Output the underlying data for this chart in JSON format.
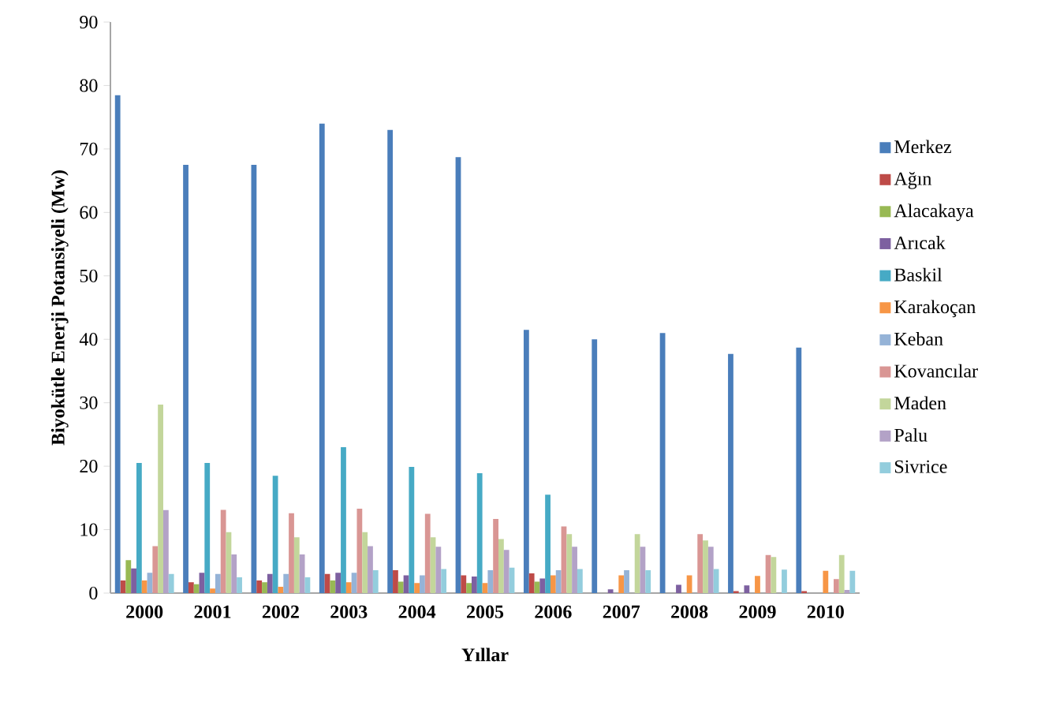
{
  "chart_data": {
    "type": "bar",
    "xlabel": "Yıllar",
    "ylabel": "Biyokütle Enerji Potansiyeli (Mw)",
    "categories": [
      "2000",
      "2001",
      "2002",
      "2003",
      "2004",
      "2005",
      "2006",
      "2007",
      "2008",
      "2009",
      "2010"
    ],
    "ylim": [
      0,
      90
    ],
    "yticks": [
      0,
      10,
      20,
      30,
      40,
      50,
      60,
      70,
      80,
      90
    ],
    "grid": false,
    "legend": "right",
    "series": [
      {
        "name": "Merkez",
        "color": "#4a7ebb",
        "values": [
          78.5,
          67.5,
          67.5,
          74,
          73,
          68.7,
          41.5,
          40.0,
          41.0,
          37.7,
          38.7
        ]
      },
      {
        "name": "Ağın",
        "color": "#be4b48",
        "values": [
          2.0,
          1.7,
          2.0,
          3.0,
          3.6,
          2.8,
          3.1,
          0,
          0,
          0.3,
          0.3
        ]
      },
      {
        "name": "Alacakaya",
        "color": "#98b954",
        "values": [
          5.2,
          1.4,
          1.7,
          2.0,
          1.8,
          1.6,
          1.8,
          0,
          0,
          0,
          0
        ]
      },
      {
        "name": "Arıcak",
        "color": "#7d60a0",
        "values": [
          3.9,
          3.2,
          3.0,
          3.2,
          2.8,
          2.6,
          2.3,
          0.6,
          1.3,
          1.2,
          0
        ]
      },
      {
        "name": "Baskil",
        "color": "#46aac5",
        "values": [
          20.5,
          20.5,
          18.5,
          23.0,
          19.9,
          18.9,
          15.5,
          0,
          0,
          0,
          0
        ]
      },
      {
        "name": "Karakoçan",
        "color": "#f79646",
        "values": [
          2.0,
          0.7,
          1.0,
          1.7,
          1.6,
          1.6,
          2.8,
          2.8,
          2.8,
          2.7,
          3.5
        ]
      },
      {
        "name": "Keban",
        "color": "#95b3d7",
        "values": [
          3.2,
          3.0,
          3.0,
          3.2,
          2.8,
          3.6,
          3.6,
          3.6,
          0,
          null,
          null
        ]
      },
      {
        "name": "Kovancılar",
        "color": "#d99694",
        "values": [
          7.4,
          13.1,
          12.6,
          13.3,
          12.5,
          11.7,
          10.5,
          0,
          9.3,
          6.0,
          2.2
        ]
      },
      {
        "name": "Maden",
        "color": "#c3d69b",
        "values": [
          29.7,
          9.6,
          8.8,
          9.6,
          8.8,
          8.5,
          9.3,
          9.3,
          8.3,
          5.7,
          6.0
        ]
      },
      {
        "name": "Palu",
        "color": "#b3a2c7",
        "values": [
          13.1,
          6.1,
          6.1,
          7.4,
          7.3,
          6.8,
          7.3,
          7.3,
          7.3,
          0,
          0.5
        ]
      },
      {
        "name": "Sivrice",
        "color": "#93cddd",
        "values": [
          3.0,
          2.5,
          2.5,
          3.6,
          3.8,
          4.0,
          3.8,
          3.6,
          3.8,
          3.7,
          3.5
        ]
      }
    ]
  }
}
